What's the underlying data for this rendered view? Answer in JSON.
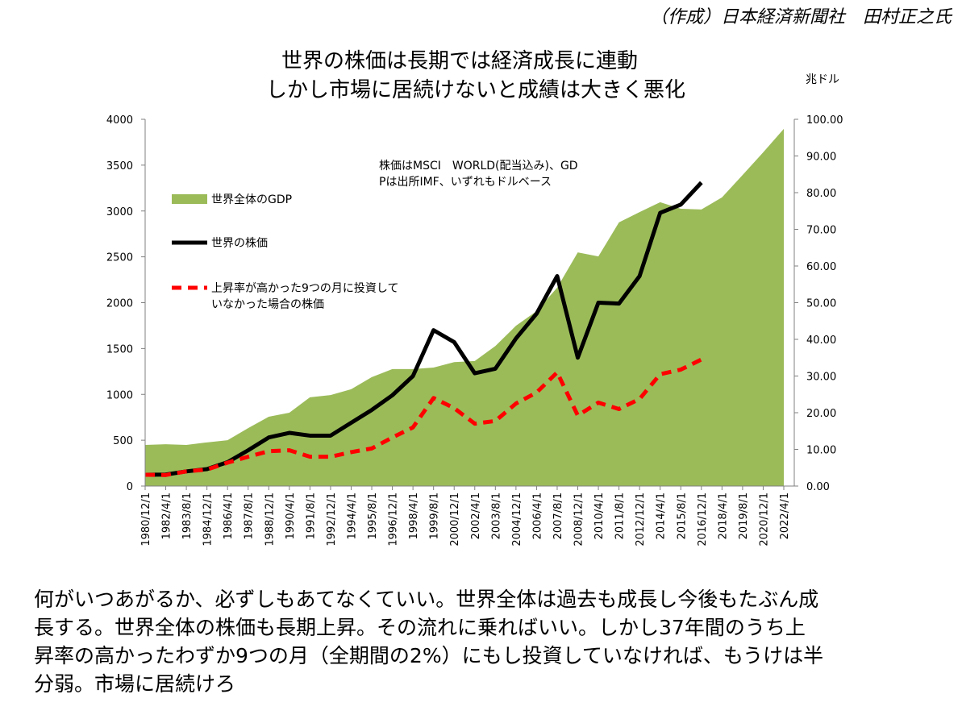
{
  "header": "（作成）日本経済新聞社　田村正之氏",
  "chart_data": {
    "type": "area-line",
    "title_lines": [
      "世界の株価は長期では経済成長に連動",
      "しかし市場に居続けないと成績は大きく悪化"
    ],
    "y2_unit": "兆ドル",
    "annotation_lines": [
      "株価はMSCI　WORLD(配当込み)、GD",
      "Pは出所IMF、いずれもドルベース"
    ],
    "categories": [
      "1980/12/1",
      "1982/4/1",
      "1983/8/1",
      "1984/12/1",
      "1986/4/1",
      "1987/8/1",
      "1988/12/1",
      "1990/4/1",
      "1991/8/1",
      "1992/12/1",
      "1994/4/1",
      "1995/8/1",
      "1996/12/1",
      "1998/4/1",
      "1999/8/1",
      "2000/12/1",
      "2002/4/1",
      "2003/8/1",
      "2004/12/1",
      "2006/4/1",
      "2007/8/1",
      "2008/12/1",
      "2010/4/1",
      "2011/8/1",
      "2012/12/1",
      "2014/4/1",
      "2015/8/1",
      "2016/12/1",
      "2018/4/1",
      "2019/8/1",
      "2020/12/1",
      "2022/4/1"
    ],
    "series": [
      {
        "name": "世界全体のGDP",
        "kind": "area",
        "axis": "y2",
        "color": "#9bbb59",
        "values": [
          11.2,
          11.4,
          11.2,
          11.9,
          12.5,
          15.8,
          18.9,
          20.0,
          24.2,
          24.8,
          26.4,
          29.7,
          31.9,
          31.9,
          32.3,
          33.8,
          34.1,
          38.2,
          43.7,
          47.7,
          54.1,
          63.7,
          62.6,
          71.9,
          74.7,
          77.4,
          75.6,
          75.4,
          78.7,
          84.8,
          91.0,
          97.4
        ]
      },
      {
        "name": "世界の株価",
        "kind": "line",
        "color": "#000000",
        "values": [
          123,
          125,
          160,
          185,
          260,
          390,
          530,
          580,
          550,
          550,
          690,
          830,
          990,
          1200,
          1700,
          1570,
          1230,
          1280,
          1610,
          1880,
          2290,
          1400,
          2000,
          1990,
          2290,
          2980,
          3070,
          3310,
          null,
          null,
          null,
          null
        ]
      },
      {
        "name": "上昇率が高かった9つの月に投資して\nいなかった場合の株価",
        "kind": "dashed",
        "color": "#ff0000",
        "values": [
          123,
          120,
          160,
          180,
          255,
          320,
          380,
          390,
          320,
          320,
          370,
          410,
          530,
          640,
          960,
          850,
          680,
          710,
          900,
          1020,
          1240,
          770,
          910,
          840,
          950,
          1220,
          1270,
          1380,
          null,
          null,
          null,
          null
        ]
      }
    ],
    "ylim": [
      0,
      4000
    ],
    "yticks": [
      0,
      500,
      1000,
      1500,
      2000,
      2500,
      3000,
      3500,
      4000
    ],
    "y2lim": [
      0,
      100
    ],
    "y2ticks": [
      {
        "value": 0,
        "label": "0.00"
      },
      {
        "value": 10,
        "label": "10.00"
      },
      {
        "value": 20,
        "label": "20.00"
      },
      {
        "value": 30,
        "label": "30.00"
      },
      {
        "value": 40,
        "label": "40.00"
      },
      {
        "value": 50,
        "label": "50.00"
      },
      {
        "value": 60,
        "label": "60.00"
      },
      {
        "value": 70,
        "label": "70.00"
      },
      {
        "value": 80,
        "label": "80.00"
      },
      {
        "value": 90,
        "label": "90.00"
      },
      {
        "value": 100,
        "label": "100.00"
      }
    ]
  },
  "caption_lines": [
    "何がいつあがるか、必ずしもあてなくていい。世界全体は過去も成長し今後もたぶん成",
    "長する。世界全体の株価も長期上昇。その流れに乗ればいい。しかし37年間のうち上",
    "昇率の高かったわずか9つの月（全期間の2%）にもし投資していなければ、もうけは半",
    "分弱。市場に居続けろ"
  ]
}
